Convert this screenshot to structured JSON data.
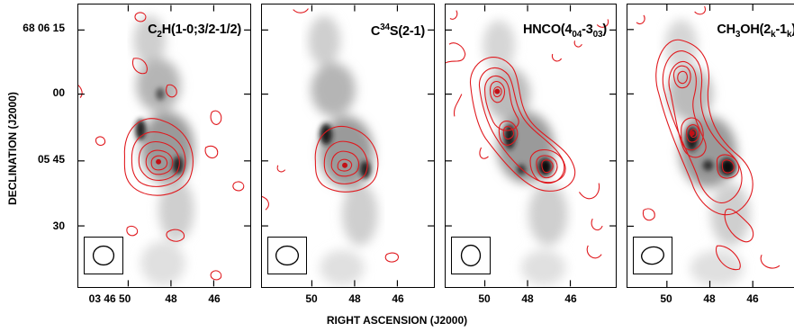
{
  "figure": {
    "x_axis_title": "RIGHT ASCENSION (J2000)",
    "y_axis_title": "DECLINATION (J2000)",
    "y_ticks": [
      "68 06 15",
      "00",
      "05 45",
      "30"
    ],
    "x_ticks_first": [
      "03 46 50",
      "48",
      "46"
    ],
    "x_ticks_rest": [
      "50",
      "48",
      "46"
    ],
    "contour_color": "#e0191e",
    "greyscale": "continuum-like grey background"
  },
  "panels": [
    {
      "molecule": "C",
      "sub1": "2",
      "rest": "H(1-0;3/2-1/2)"
    },
    {
      "molecule": "C",
      "sup1": "34",
      "rest": "S(2-1)"
    },
    {
      "molecule": "HNCO(4",
      "sub1": "04",
      "mid": "-3",
      "sub2": "03",
      "rest": ")"
    },
    {
      "molecule": "CH",
      "sub1": "3",
      "mid": "OH(2",
      "sub2": "k",
      "mid2": "-1",
      "sub3": "k",
      "rest": ")"
    }
  ]
}
